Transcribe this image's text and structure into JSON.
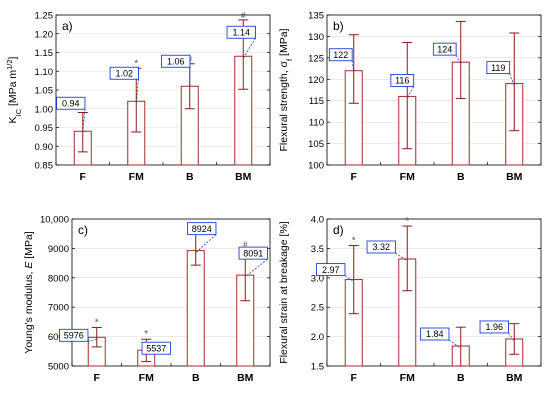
{
  "colors": {
    "bar_stroke": "#a52a2a",
    "error_bar": "#8b1a1a",
    "label_box_stroke": "#1f3fd6",
    "label_leader": "#1f3fd6",
    "axis": "#000000",
    "frame": "#000000",
    "grid": "#dedede",
    "text": "#000000"
  },
  "chart_data": [
    {
      "panel": "a)",
      "type": "bar",
      "ylabel": "K_IC [MPa m^1/2]",
      "ylabel_parts": [
        "K",
        "IC",
        " [MPa m",
        "1/2",
        "]"
      ],
      "categories": [
        "F",
        "FM",
        "B",
        "BM"
      ],
      "values": [
        0.94,
        1.02,
        1.06,
        1.14
      ],
      "labels": [
        "0.94",
        "1.02",
        "1.06",
        "1.14"
      ],
      "error_low": [
        0.885,
        0.938,
        1.0,
        1.052
      ],
      "error_high": [
        0.99,
        1.108,
        1.12,
        1.237
      ],
      "markers": [
        "*",
        "*",
        "#",
        "#"
      ],
      "ylim": [
        0.85,
        1.25
      ],
      "yticks": [
        0.85,
        0.9,
        0.95,
        1.0,
        1.05,
        1.1,
        1.15,
        1.2,
        1.25
      ],
      "yticklabels": [
        "0.85",
        "0.90",
        "0.95",
        "1.00",
        "1.05",
        "1.10",
        "1.15",
        "1.20",
        "1.25"
      ],
      "grid": true
    },
    {
      "panel": "b)",
      "type": "bar",
      "ylabel": "Flexural strength, σ_f [MPa]",
      "ylabel_parts": [
        "Flexural strength, σ",
        "f",
        " [MPa]"
      ],
      "categories": [
        "F",
        "FM",
        "B",
        "BM"
      ],
      "values": [
        122,
        116,
        124,
        119
      ],
      "labels": [
        "122",
        "116",
        "124",
        "119"
      ],
      "error_low": [
        114.4,
        103.8,
        115.5,
        108
      ],
      "error_high": [
        130.4,
        128.6,
        133.5,
        130.8
      ],
      "markers": [
        "",
        "",
        "",
        ""
      ],
      "ylim": [
        100,
        135
      ],
      "yticks": [
        100,
        105,
        110,
        115,
        120,
        125,
        130,
        135
      ],
      "yticklabels": [
        "100",
        "105",
        "110",
        "115",
        "120",
        "125",
        "130",
        "135"
      ],
      "grid": true
    },
    {
      "panel": "c)",
      "type": "bar",
      "ylabel": "Young's modulus, E [MPa]",
      "ylabel_parts": [
        "Young's modulus, ",
        "E",
        " [MPa]"
      ],
      "categories": [
        "F",
        "FM",
        "B",
        "BM"
      ],
      "values": [
        5976,
        5537,
        8924,
        8091
      ],
      "labels": [
        "5976",
        "5537",
        "8924",
        "8091"
      ],
      "error_low": [
        5650,
        5150,
        8430,
        7220
      ],
      "error_high": [
        6310,
        5910,
        9520,
        8960
      ],
      "markers": [
        "*",
        "*",
        "#",
        "#"
      ],
      "ylim": [
        5000,
        10000
      ],
      "yticks": [
        5000,
        6000,
        7000,
        8000,
        9000,
        10000
      ],
      "yticklabels": [
        "5000",
        "6000",
        "7000",
        "8000",
        "9000",
        "10,000"
      ],
      "grid": true
    },
    {
      "panel": "d)",
      "type": "bar",
      "ylabel": "Flexural strain at breakage [%]",
      "ylabel_parts": [
        "Flexural strain at breakage [%]"
      ],
      "categories": [
        "F",
        "FM",
        "B",
        "BM"
      ],
      "values": [
        2.97,
        3.32,
        1.84,
        1.96
      ],
      "labels": [
        "2.97",
        "3.32",
        "1.84",
        "1.96"
      ],
      "error_low": [
        2.39,
        2.78,
        1.5,
        1.7
      ],
      "error_high": [
        3.55,
        3.88,
        2.16,
        2.22
      ],
      "markers": [
        "*",
        "*",
        "",
        ""
      ],
      "ylim": [
        1.5,
        4.0
      ],
      "yticks": [
        1.5,
        2.0,
        2.5,
        3.0,
        3.5,
        4.0
      ],
      "yticklabels": [
        "1.5",
        "2.0",
        "2.5",
        "3.0",
        "3.5",
        "4.0"
      ],
      "grid": true
    }
  ]
}
